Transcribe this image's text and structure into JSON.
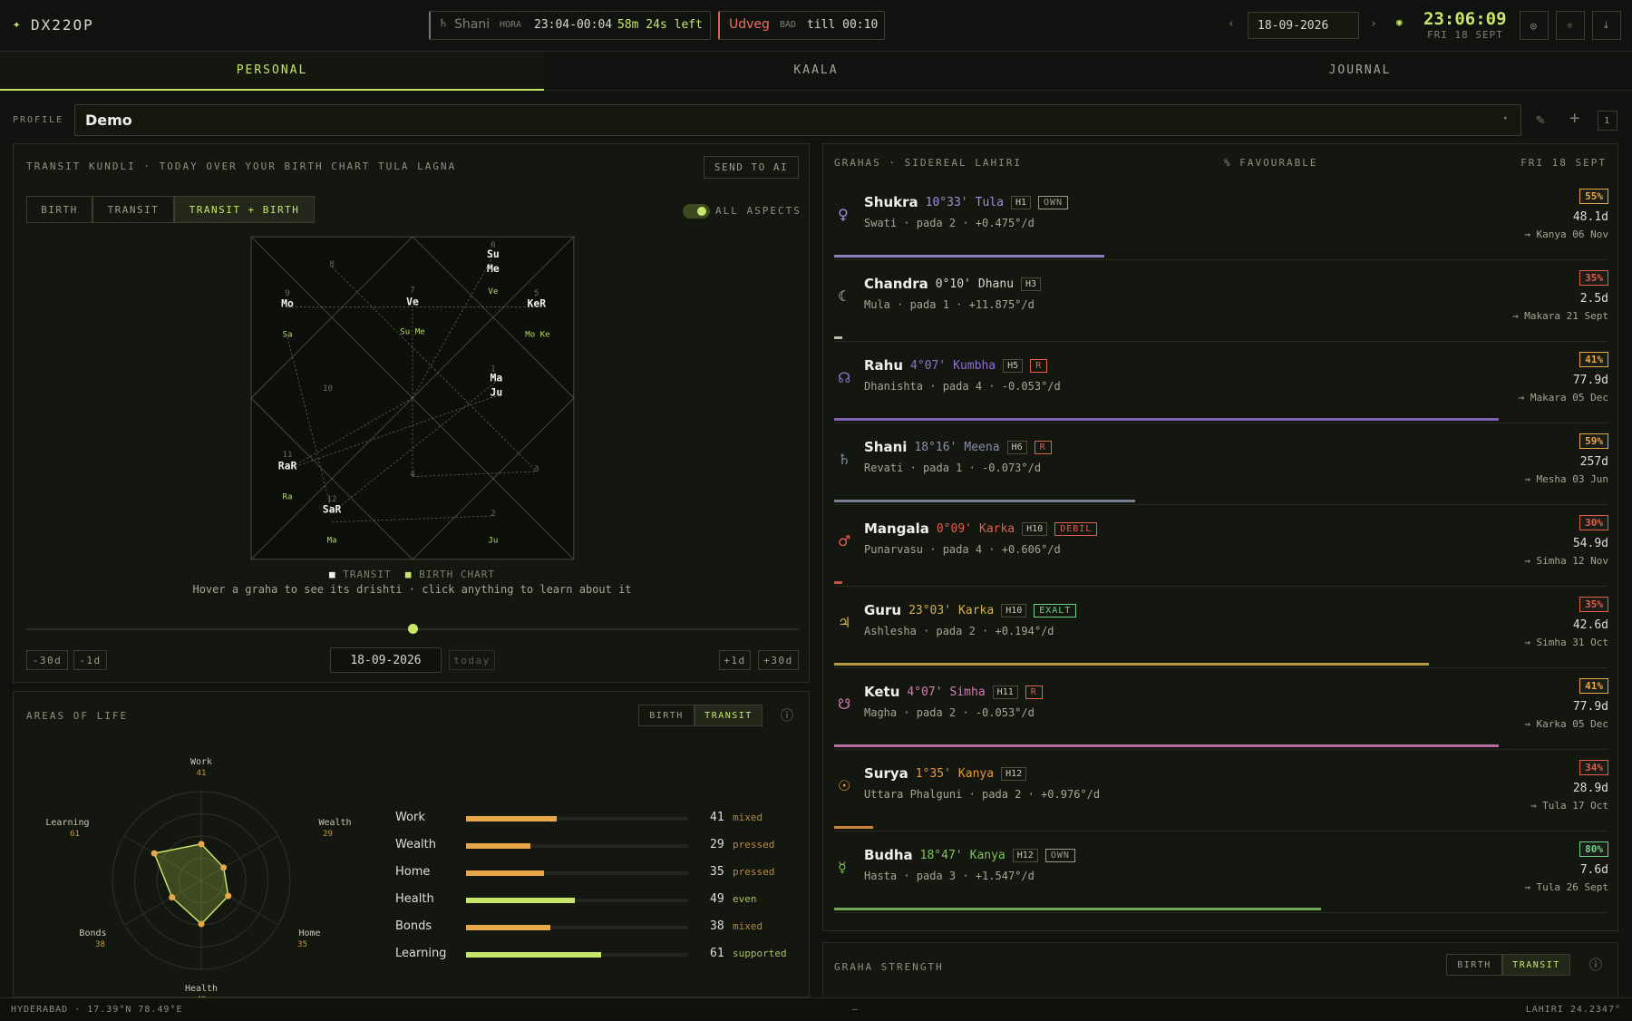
{
  "header": {
    "logo": "DX22OP",
    "hora_planet": "Shani",
    "hora_label": "HORA",
    "hora_time": "23:04-00:04",
    "hora_left": "58m 24s left",
    "choghadiya": "Udveg",
    "choghadiya_label": "BAD",
    "choghadiya_until": "till 00:10",
    "date": "18-09-2026",
    "clock": "23:06:09",
    "clock_date": "FRI 18 SEPT"
  },
  "tabs": [
    "PERSONAL",
    "KAALA",
    "JOURNAL"
  ],
  "profile": {
    "label": "PROFILE",
    "name": "Demo",
    "count": "1"
  },
  "kundli": {
    "title": "TRANSIT KUNDLI · TODAY OVER YOUR BIRTH CHART TULA LAGNA",
    "send": "SEND TO AI",
    "modes": [
      "BIRTH",
      "TRANSIT",
      "TRANSIT + BIRTH"
    ],
    "aspects": "ALL ASPECTS",
    "house_numbers": [
      "1",
      "2",
      "3",
      "4",
      "5",
      "6",
      "7",
      "8",
      "9",
      "10",
      "11",
      "12"
    ],
    "transit": [
      "Su",
      "Me",
      "Ve",
      "Mo",
      "KeR",
      "Ma",
      "Ju",
      "RaR",
      "SaR"
    ],
    "birth": [
      "Ve",
      "Su Me",
      "Sa",
      "Mo Ke",
      "Ra",
      "Ma",
      "Ju"
    ],
    "legend": [
      "TRANSIT",
      "BIRTH CHART"
    ],
    "hint": "Hover a graha to see its drishti · click anything to learn about it",
    "controls": [
      "-30d",
      "-1d",
      "+1d",
      "+30d"
    ],
    "date": "18-09-2026",
    "today": "today"
  },
  "areas": {
    "title": "AREAS OF LIFE",
    "modes": [
      "BIRTH",
      "TRANSIT"
    ],
    "max": 100,
    "items": [
      {
        "name": "Work",
        "value": 41,
        "tone": "mixed"
      },
      {
        "name": "Wealth",
        "value": 29,
        "tone": "pressed"
      },
      {
        "name": "Home",
        "value": 35,
        "tone": "pressed"
      },
      {
        "name": "Health",
        "value": 49,
        "tone": "even"
      },
      {
        "name": "Bonds",
        "value": 38,
        "tone": "mixed"
      },
      {
        "name": "Learning",
        "value": 61,
        "tone": "supported"
      }
    ]
  },
  "grahas": {
    "title": "GRAHAS · SIDEREAL LAHIRI",
    "middle": "% FAVOURABLE",
    "date": "FRI 18 SEPT",
    "progress_max": 100,
    "rows": [
      {
        "symbol": "♀",
        "name": "Shukra",
        "degree": "10°33'",
        "sign": "Tula",
        "house": "H1",
        "tags": [
          "OWN"
        ],
        "detail": "Swati · pada 2 · +0.475°/d",
        "pct": "55%",
        "duration": "48.1d",
        "next": "→ Kanya 06 Nov",
        "progress": 35,
        "color": "#9d8fd8"
      },
      {
        "symbol": "☾",
        "name": "Chandra",
        "degree": "0°10'",
        "sign": "Dhanu",
        "house": "H3",
        "tags": [],
        "detail": "Mula · pada 1 · +11.875°/d",
        "pct": "35%",
        "duration": "2.5d",
        "next": "→ Makara 21 Sept",
        "progress": 1,
        "color": "#d8d8cc"
      },
      {
        "symbol": "☊",
        "name": "Rahu",
        "degree": "4°07'",
        "sign": "Kumbha",
        "house": "H5",
        "tags": [
          "R"
        ],
        "detail": "Dhanishta · pada 4 · -0.053°/d",
        "pct": "41%",
        "duration": "77.9d",
        "next": "→ Makara 05 Dec",
        "progress": 86,
        "color": "#8f6fd0"
      },
      {
        "symbol": "♄",
        "name": "Shani",
        "degree": "18°16'",
        "sign": "Meena",
        "house": "H6",
        "tags": [
          "R"
        ],
        "detail": "Revati · pada 1 · -0.073°/d",
        "pct": "59%",
        "duration": "257d",
        "next": "→ Mesha 03 Jun",
        "progress": 39,
        "color": "#8a90a8"
      },
      {
        "symbol": "♂",
        "name": "Mangala",
        "degree": "0°09'",
        "sign": "Karka",
        "house": "H10",
        "tags": [
          "DEBIL"
        ],
        "detail": "Punarvasu · pada 4 · +0.606°/d",
        "pct": "30%",
        "duration": "54.9d",
        "next": "→ Simha 12 Nov",
        "progress": 1,
        "color": "#e0604e"
      },
      {
        "symbol": "♃",
        "name": "Guru",
        "degree": "23°03'",
        "sign": "Karka",
        "house": "H10",
        "tags": [
          "EXALT"
        ],
        "detail": "Ashlesha · pada 2 · +0.194°/d",
        "pct": "35%",
        "duration": "42.6d",
        "next": "→ Simha 31 Oct",
        "progress": 77,
        "color": "#d6b24c"
      },
      {
        "symbol": "☋",
        "name": "Ketu",
        "degree": "4°07'",
        "sign": "Simha",
        "house": "H11",
        "tags": [
          "R"
        ],
        "detail": "Magha · pada 2 · -0.053°/d",
        "pct": "41%",
        "duration": "77.9d",
        "next": "→ Karka 05 Dec",
        "progress": 86,
        "color": "#d77ab8"
      },
      {
        "symbol": "☉",
        "name": "Surya",
        "degree": "1°35'",
        "sign": "Kanya",
        "house": "H12",
        "tags": [],
        "detail": "Uttara Phalguni · pada 2 · +0.976°/d",
        "pct": "34%",
        "duration": "28.9d",
        "next": "→ Tula 17 Oct",
        "progress": 5,
        "color": "#e39a3c"
      },
      {
        "symbol": "☿",
        "name": "Budha",
        "degree": "18°47'",
        "sign": "Kanya",
        "house": "H12",
        "tags": [
          "OWN"
        ],
        "detail": "Hasta · pada 3 · +1.547°/d",
        "pct": "80%",
        "duration": "7.6d",
        "next": "→ Tula 26 Sept",
        "progress": 63,
        "color": "#7fc25a"
      }
    ]
  },
  "strength": {
    "title": "GRAHA STRENGTH",
    "modes": [
      "BIRTH",
      "TRANSIT"
    ]
  },
  "footer": {
    "location": "HYDERABAD · 17.39°N 78.49°E",
    "center": "—",
    "ayanamsa": "LAHIRI 24.2347°"
  }
}
